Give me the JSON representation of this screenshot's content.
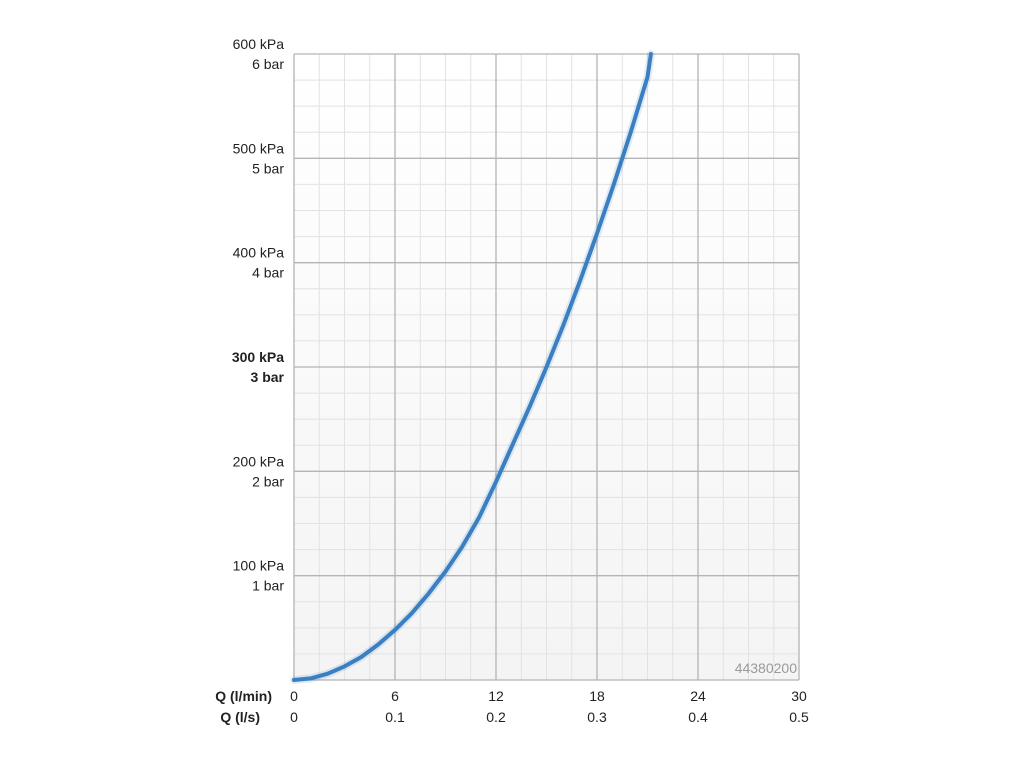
{
  "chart_data": {
    "type": "line",
    "x_label_primary": "Q (l/min)",
    "x_label_secondary": "Q (l/s)",
    "x_ticks_primary": [
      "0",
      "6",
      "12",
      "18",
      "24",
      "30"
    ],
    "x_ticks_secondary": [
      "0",
      "0.1",
      "0.2",
      "0.3",
      "0.4",
      "0.5"
    ],
    "y_ticks": [
      {
        "kpa": "100 kPa",
        "bar": "1 bar",
        "value": 100,
        "bold": false
      },
      {
        "kpa": "200 kPa",
        "bar": "2 bar",
        "value": 200,
        "bold": false
      },
      {
        "kpa": "300 kPa",
        "bar": "3 bar",
        "value": 300,
        "bold": true
      },
      {
        "kpa": "400 kPa",
        "bar": "4 bar",
        "value": 400,
        "bold": false
      },
      {
        "kpa": "500 kPa",
        "bar": "5 bar",
        "value": 500,
        "bold": false
      },
      {
        "kpa": "600 kPa",
        "bar": "6 bar",
        "value": 600,
        "bold": false
      }
    ],
    "xlim": [
      0,
      30
    ],
    "ylim": [
      0,
      600
    ],
    "grid": true,
    "minor_grid_per_major": 4,
    "series": [
      {
        "color": "#3a7fc1",
        "x": [
          0,
          1,
          2,
          3,
          4,
          5,
          6,
          7,
          8,
          9,
          10,
          11,
          12,
          13,
          14,
          15,
          16,
          17,
          18,
          19,
          20,
          21,
          21.2
        ],
        "y": [
          0,
          1.5,
          6,
          13,
          22,
          34,
          48,
          64,
          83,
          104,
          128,
          156,
          190,
          226,
          262,
          300,
          340,
          383,
          428,
          475,
          525,
          578,
          600
        ]
      }
    ],
    "annotation": "44380200"
  },
  "colors": {
    "major_grid": "#b4b4b4",
    "minor_grid": "#e2e2e2",
    "background_bottom": "#f4f4f4",
    "line": "#3a7fc1"
  }
}
